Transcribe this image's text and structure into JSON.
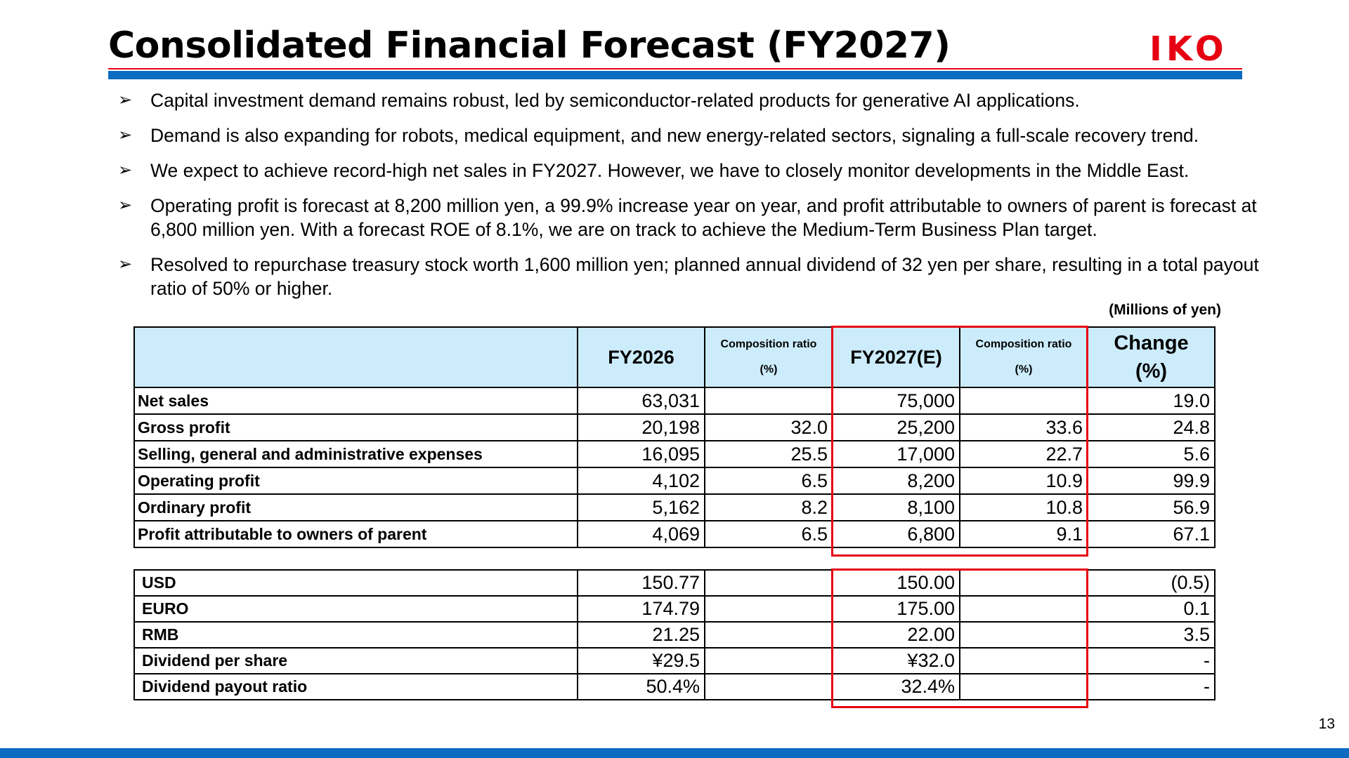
{
  "title": "Consolidated Financial Forecast (FY2027)",
  "logo_text": "IKO",
  "bullets": [
    "Capital investment demand remains robust, led by semiconductor-related products for generative AI applications.",
    "Demand is also expanding for robots, medical equipment, and new energy-related sectors, signaling a full-scale recovery trend.",
    "We expect to achieve record-high net sales in FY2027. However, we have to closely monitor developments in the Middle East.",
    "Operating profit is forecast at 8,200 million yen, a 99.9% increase year on year, and profit attributable to owners of parent is forecast at 6,800 million yen. With a forecast ROE of 8.1%, we are on track to achieve the Medium-Term Business Plan target.",
    "Resolved to repurchase treasury stock worth 1,600 million yen; planned annual dividend of 32 yen per share, resulting in a total payout ratio of 50% or higher."
  ],
  "units_note": "(Millions of yen)",
  "table": {
    "headers": {
      "fy2026": "FY2026",
      "comp_ratio": "Composition ratio",
      "comp_ratio_unit": "(%)",
      "fy2027": "FY2027(E)",
      "change": "Change",
      "change_unit": "(%)"
    },
    "rows": [
      {
        "label": "Net sales",
        "fy2026": "63,031",
        "ratio2026": "",
        "fy2027": "75,000",
        "ratio2027": "",
        "change": "19.0"
      },
      {
        "label": "Gross profit",
        "fy2026": "20,198",
        "ratio2026": "32.0",
        "fy2027": "25,200",
        "ratio2027": "33.6",
        "change": "24.8"
      },
      {
        "label": "Selling, general and administrative expenses",
        "fy2026": "16,095",
        "ratio2026": "25.5",
        "fy2027": "17,000",
        "ratio2027": "22.7",
        "change": "5.6"
      },
      {
        "label": "Operating profit",
        "fy2026": "4,102",
        "ratio2026": "6.5",
        "fy2027": "8,200",
        "ratio2027": "10.9",
        "change": "99.9"
      },
      {
        "label": "Ordinary profit",
        "fy2026": "5,162",
        "ratio2026": "8.2",
        "fy2027": "8,100",
        "ratio2027": "10.8",
        "change": "56.9"
      },
      {
        "label": "Profit attributable to owners of parent",
        "fy2026": "4,069",
        "ratio2026": "6.5",
        "fy2027": "6,800",
        "ratio2027": "9.1",
        "change": "67.1"
      }
    ],
    "sub_rows": [
      {
        "label": "USD",
        "fy2026": "150.77",
        "fy2027": "150.00",
        "change": "(0.5)"
      },
      {
        "label": "EURO",
        "fy2026": "174.79",
        "fy2027": "175.00",
        "change": "0.1"
      },
      {
        "label": "RMB",
        "fy2026": "21.25",
        "fy2027": "22.00",
        "change": "3.5"
      },
      {
        "label": "Dividend per share",
        "fy2026": "¥29.5",
        "fy2027": "¥32.0",
        "change": "-"
      },
      {
        "label": "Dividend payout ratio",
        "fy2026": "50.4%",
        "fy2027": "32.4%",
        "change": "-"
      }
    ]
  },
  "colors": {
    "accent_red": "#e60012",
    "brand_blue": "#0d6bc2",
    "header_fill": "#ccecfb"
  },
  "page_number": "13"
}
